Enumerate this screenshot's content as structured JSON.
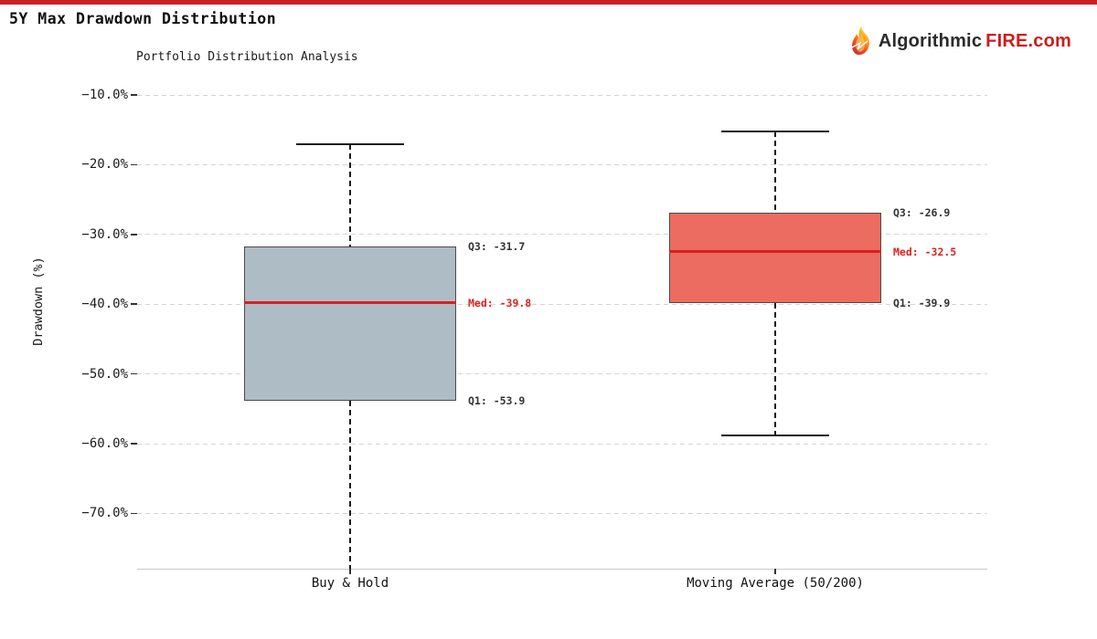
{
  "header": {
    "title": "5Y Max Drawdown Distribution",
    "accent_color": "#cc2026",
    "logo": {
      "flame_icon": "flame-icon",
      "text_dark": "Algorithmic",
      "text_red": "FIRE.com",
      "dark_color": "#2b2b2b",
      "red_color": "#c8201e"
    }
  },
  "chart_data": {
    "type": "boxplot",
    "title": "Portfolio Distribution Analysis",
    "ylabel": "Drawdown (%)",
    "xlabel": "",
    "grid": true,
    "ylim": [
      -77.9,
      -6.6
    ],
    "y_ticks": [
      -10,
      -20,
      -30,
      -40,
      -50,
      -60,
      -70
    ],
    "y_tick_labels": [
      "−10.0%",
      "−20.0%",
      "−30.0%",
      "−40.0%",
      "−50.0%",
      "−60.0%",
      "−70.0%"
    ],
    "categories": [
      "Buy & Hold",
      "Moving Average (50/200)"
    ],
    "median_color": "#d62022",
    "annotation_dark_color": "#333333",
    "annotation_red_color": "#d8231f",
    "series": [
      {
        "name": "Buy & Hold",
        "whisker_high": -17.1,
        "q3": -31.7,
        "median": -39.8,
        "q1": -53.9,
        "whisker_low": -77.9,
        "whisker_low_capped": false,
        "box_color": "#aebdc5",
        "labels": {
          "q3": "Q3: -31.7",
          "med": "Med: -39.8",
          "q1": "Q1: -53.9"
        }
      },
      {
        "name": "Moving Average (50/200)",
        "whisker_high": -15.3,
        "q3": -26.9,
        "median": -32.5,
        "q1": -39.9,
        "whisker_low": -58.8,
        "whisker_low_capped": true,
        "box_color": "#ed6c61",
        "labels": {
          "q3": "Q3: -26.9",
          "med": "Med: -32.5",
          "q1": "Q1: -39.9"
        }
      }
    ]
  }
}
